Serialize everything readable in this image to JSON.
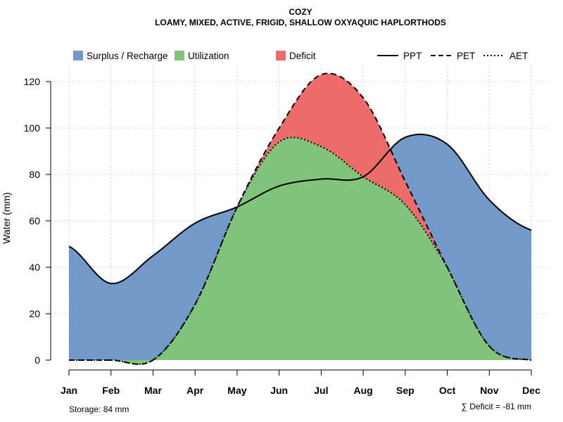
{
  "chart_data": {
    "type": "area",
    "title": "COZY",
    "subtitle": "LOAMY, MIXED, ACTIVE, FRIGID, SHALLOW OXYAQUIC HAPLORTHODS",
    "xlabel": "",
    "ylabel": "Water (mm)",
    "ylim": [
      0,
      128
    ],
    "yticks": [
      0,
      20,
      40,
      60,
      80,
      100,
      120
    ],
    "grid": true,
    "categories": [
      "Jan",
      "Feb",
      "Mar",
      "Apr",
      "May",
      "Jun",
      "Jul",
      "Aug",
      "Sep",
      "Oct",
      "Nov",
      "Dec"
    ],
    "series": [
      {
        "name": "PPT",
        "style": "solid",
        "values": [
          49,
          33,
          45,
          59,
          66,
          75,
          78,
          79,
          96,
          93,
          69,
          56
        ]
      },
      {
        "name": "PET",
        "style": "dashed",
        "values": [
          0,
          0,
          0,
          24,
          66,
          100,
          123,
          113,
          77,
          40,
          6,
          0
        ]
      },
      {
        "name": "AET",
        "style": "dotted",
        "values": [
          0,
          0,
          0,
          24,
          66,
          94,
          92,
          79,
          67,
          40,
          6,
          0
        ]
      }
    ],
    "fills": [
      {
        "name": "Surplus / Recharge",
        "color": "#7399C9"
      },
      {
        "name": "Utilization",
        "color": "#7FC47A"
      },
      {
        "name": "Deficit",
        "color": "#EC6C6C"
      }
    ],
    "legend_placement": "top",
    "annotations": {
      "storage": "Storage: 84 mm",
      "deficit": "∑ Deficit = -81 mm"
    }
  }
}
